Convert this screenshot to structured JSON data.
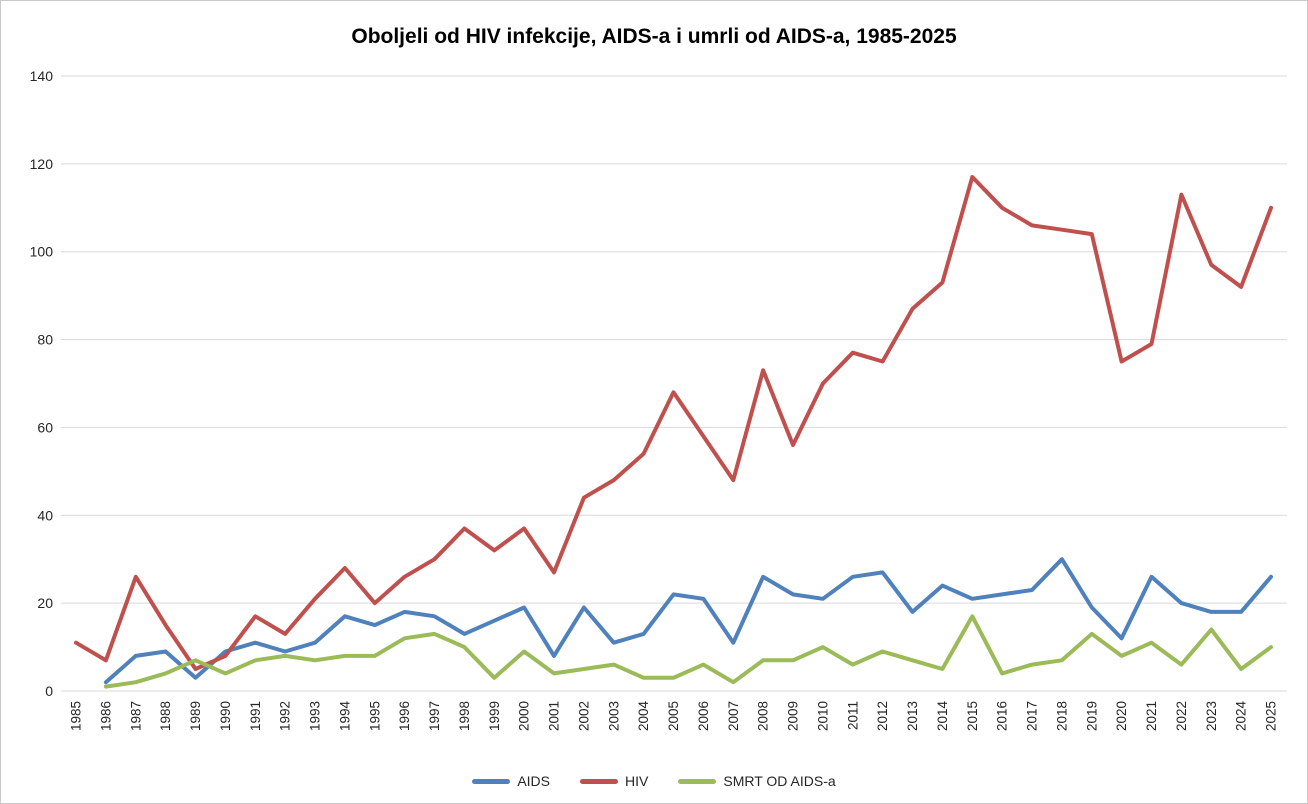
{
  "chart_data": {
    "type": "line",
    "title": "Oboljeli od HIV infekcije, AIDS-a i umrli od AIDS-a, 1985-2025",
    "xlabel": "",
    "ylabel": "",
    "x": [
      1985,
      1986,
      1987,
      1988,
      1989,
      1990,
      1991,
      1992,
      1993,
      1994,
      1995,
      1996,
      1997,
      1998,
      1999,
      2000,
      2001,
      2002,
      2003,
      2004,
      2005,
      2006,
      2007,
      2008,
      2009,
      2010,
      2011,
      2012,
      2013,
      2014,
      2015,
      2016,
      2017,
      2018,
      2019,
      2020,
      2021,
      2022,
      2023,
      2024,
      2025
    ],
    "series": [
      {
        "name": "AIDS",
        "color": "#4F81BD",
        "values": [
          null,
          2,
          8,
          9,
          3,
          9,
          11,
          9,
          11,
          17,
          15,
          18,
          17,
          13,
          16,
          19,
          8,
          19,
          11,
          13,
          22,
          21,
          11,
          26,
          22,
          21,
          26,
          27,
          18,
          24,
          21,
          22,
          23,
          30,
          19,
          12,
          26,
          20,
          18,
          18,
          26
        ]
      },
      {
        "name": "HIV",
        "color": "#C0504D",
        "values": [
          11,
          7,
          26,
          15,
          5,
          8,
          17,
          13,
          21,
          28,
          20,
          26,
          30,
          37,
          32,
          37,
          27,
          44,
          48,
          54,
          68,
          58,
          48,
          73,
          56,
          70,
          77,
          75,
          87,
          93,
          117,
          110,
          106,
          105,
          104,
          75,
          79,
          113,
          97,
          92,
          110
        ]
      },
      {
        "name": "SMRT OD AIDS-a",
        "color": "#9BBB59",
        "values": [
          null,
          1,
          2,
          4,
          7,
          4,
          7,
          8,
          7,
          8,
          8,
          12,
          13,
          10,
          3,
          9,
          4,
          5,
          6,
          3,
          3,
          6,
          2,
          7,
          7,
          10,
          6,
          9,
          7,
          5,
          17,
          4,
          6,
          7,
          13,
          8,
          11,
          6,
          14,
          5,
          10
        ]
      }
    ],
    "ylim": [
      0,
      140
    ],
    "yticks": [
      0,
      20,
      40,
      60,
      80,
      100,
      120,
      140
    ],
    "grid": true,
    "gridline_color": "#D9D9D9",
    "tick_label_color": "#262626",
    "legend_position": "bottom"
  }
}
